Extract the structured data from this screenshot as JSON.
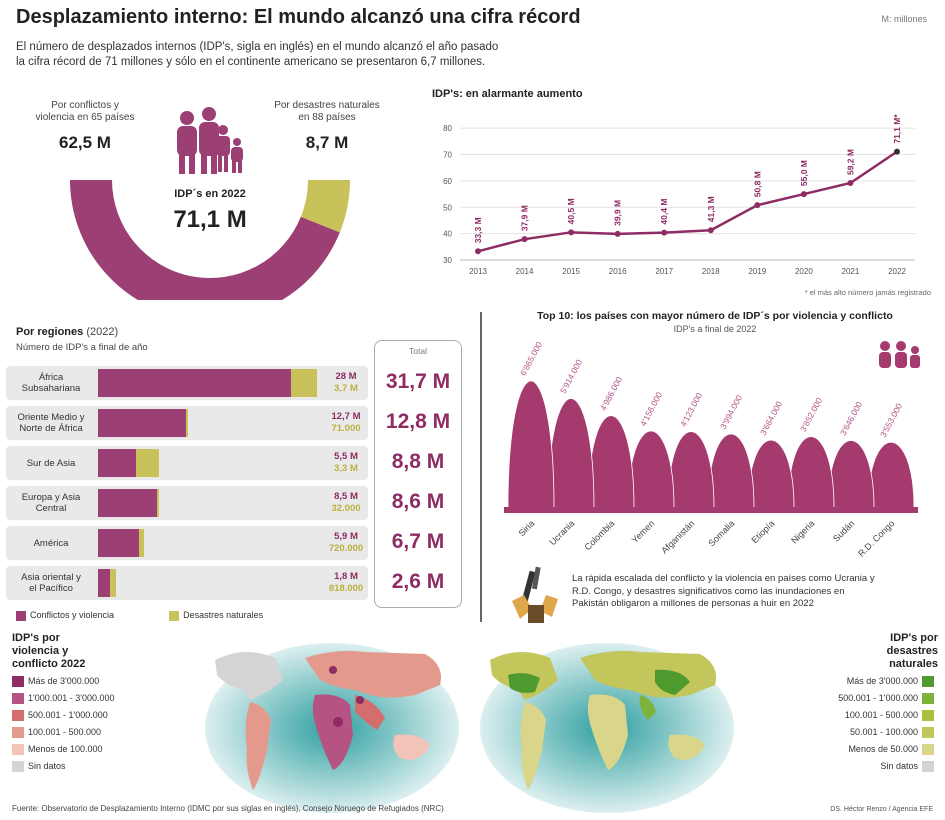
{
  "header": {
    "title": "Desplazamiento interno: El mundo alcanzó una cifra récord",
    "units": "M: millones",
    "intro_line1": "El número de desplazados internos (IDP's, sigla en inglés) en el mundo alcanzó el año pasado",
    "intro_line2": "la cifra récord de 71 millones y sólo en el continente americano se presentaron 6,7 millones."
  },
  "donut": {
    "left_label_l1": "Por conflictos y",
    "left_label_l2": "violencia en 65 países",
    "left_value": "62,5 M",
    "right_label_l1": "Por desastres naturales",
    "right_label_l2": "en 88 países",
    "right_value": "8,7 M",
    "center_label": "IDP´s en 2022",
    "center_value": "71,1 M",
    "colors": {
      "conflict": "#9c3f74",
      "disaster": "#c9c25a"
    }
  },
  "line_chart_text": {
    "title": "IDP's: en alarmante aumento",
    "note": "* el más alto número jamás registrado"
  },
  "regions": {
    "title": "Por regiones",
    "year": "(2022)",
    "subtitle": "Número de IDP's a final de año",
    "total_header": "Total",
    "legend_conflict": "Conflictos y violencia",
    "legend_disaster": "Desastres naturales",
    "rows": [
      {
        "label_l1": "África",
        "label_l2": "Subsahariana",
        "v1": "28 M",
        "v2": "3,7 M",
        "total": "31,7 M",
        "conflict": 28,
        "disaster": 3.7
      },
      {
        "label_l1": "Oriente Medio y",
        "label_l2": "Norte de África",
        "v1": "12,7 M",
        "v2": "71.000",
        "total": "12,8 M",
        "conflict": 12.7,
        "disaster": 0.071
      },
      {
        "label_l1": "Sur de Asia",
        "label_l2": "",
        "v1": "5,5 M",
        "v2": "3,3 M",
        "total": "8,8 M",
        "conflict": 5.5,
        "disaster": 3.3
      },
      {
        "label_l1": "Europa y Asia",
        "label_l2": "Central",
        "v1": "8,5 M",
        "v2": "32.000",
        "total": "8,6 M",
        "conflict": 8.5,
        "disaster": 0.032
      },
      {
        "label_l1": "América",
        "label_l2": "",
        "v1": "5,9 M",
        "v2": "720.000",
        "total": "6,7 M",
        "conflict": 5.9,
        "disaster": 0.72
      },
      {
        "label_l1": "Asia oriental y",
        "label_l2": "el Pacífico",
        "v1": "1,8 M",
        "v2": "818.000",
        "total": "2,6 M",
        "conflict": 1.8,
        "disaster": 0.818
      }
    ]
  },
  "top10_text": {
    "title": "Top 10: los países con mayor número de IDP´s por violencia y conflicto",
    "subtitle": "IDP's a final de 2022"
  },
  "quote": {
    "line1": "La rápida escalada del conflicto y la violencia en países como Ucrania y",
    "line2": "R.D. Congo, y desastres significativos como las inundaciones en",
    "line3": "Pakistán obligaron a millones de personas a huir en 2022"
  },
  "maps": {
    "left_title_l1": "IDP's por",
    "left_title_l2": "violencia y",
    "left_title_l3": "conflicto 2022",
    "left_legend": [
      {
        "label": "Más de 3'000.000",
        "color": "#8e2c63"
      },
      {
        "label": "1'000.001 - 3'000.000",
        "color": "#b55483"
      },
      {
        "label": "500.001 - 1'000.000",
        "color": "#d46e6e"
      },
      {
        "label": "100.001 - 500.000",
        "color": "#e39a8c"
      },
      {
        "label": "Menos de 100.000",
        "color": "#f2c4b8"
      },
      {
        "label": "Sin datos",
        "color": "#d4d4d4"
      }
    ],
    "right_title_l1": "IDP's por",
    "right_title_l2": "desastres",
    "right_title_l3": "naturales",
    "right_legend": [
      {
        "label": "Más de 3'000.000",
        "color": "#4f9a2e"
      },
      {
        "label": "500.001 - 1'000.000",
        "color": "#7db33a"
      },
      {
        "label": "100.001 - 500.000",
        "color": "#a8c23f"
      },
      {
        "label": "50.001 - 100.000",
        "color": "#c3c65a"
      },
      {
        "label": "Menos de 50.000",
        "color": "#d9d68c"
      },
      {
        "label": "Sin datos",
        "color": "#d4d4d4"
      }
    ]
  },
  "footer": {
    "source": "Fuente: Observatorio de Desplazamiento Interno (IDMC por sus siglas en inglés), Consejo Noruego de Refugiados (NRC)",
    "credit": "DS. Héctor Renzo / Agencia EFE"
  },
  "chart_data": [
    {
      "type": "line",
      "title": "IDP's: en alarmante aumento",
      "x": [
        "2013",
        "2014",
        "2015",
        "2016",
        "2017",
        "2018",
        "2019",
        "2020",
        "2021",
        "2022"
      ],
      "values": [
        33.3,
        37.9,
        40.5,
        39.9,
        40.4,
        41.3,
        50.8,
        55.0,
        59.2,
        71.1
      ],
      "labels": [
        "33,3 M",
        "37,9 M",
        "40,5 M",
        "39,9 M",
        "40,4 M",
        "41,3 M",
        "50,8 M",
        "55,0 M",
        "59,2 M",
        "71,1 M*"
      ],
      "yticks": [
        30,
        40,
        50,
        60,
        70,
        80
      ],
      "ylim": [
        30,
        85
      ],
      "grid": true,
      "color": "#8e2c63"
    },
    {
      "type": "bar",
      "title": "Top 10: los países con mayor número de IDP´s por violencia y conflicto",
      "categories": [
        "Siria",
        "Ucrania",
        "Colombia",
        "Yemen",
        "Afganistán",
        "Somalia",
        "Etiopía",
        "Nigeria",
        "Sudán",
        "R.D. Congo"
      ],
      "values": [
        6865000,
        5914000,
        4986000,
        4156000,
        4123000,
        3994000,
        3664000,
        3852000,
        3646000,
        3553000
      ],
      "labels": [
        "6'865.000",
        "5'914.000",
        "4'986.000",
        "4'156.000",
        "4'123.000",
        "3'994.000",
        "3'664.000",
        "3'852.000",
        "3'646.000",
        "3'553.000"
      ],
      "color": "#a53a6e"
    },
    {
      "type": "bar",
      "title": "Por regiones",
      "categories": [
        "África Subsahariana",
        "Oriente Medio y Norte de África",
        "Sur de Asia",
        "Europa y Asia Central",
        "América",
        "Asia oriental y el Pacífico"
      ],
      "series": [
        {
          "name": "Conflictos y violencia",
          "values": [
            28,
            12.7,
            5.5,
            8.5,
            5.9,
            1.8
          ]
        },
        {
          "name": "Desastres naturales",
          "values": [
            3.7,
            0.071,
            3.3,
            0.032,
            0.72,
            0.818
          ]
        }
      ]
    },
    {
      "type": "pie",
      "title": "IDP´s en 2022",
      "categories": [
        "Por conflictos y violencia",
        "Por desastres naturales"
      ],
      "values": [
        62.5,
        8.7
      ]
    }
  ]
}
